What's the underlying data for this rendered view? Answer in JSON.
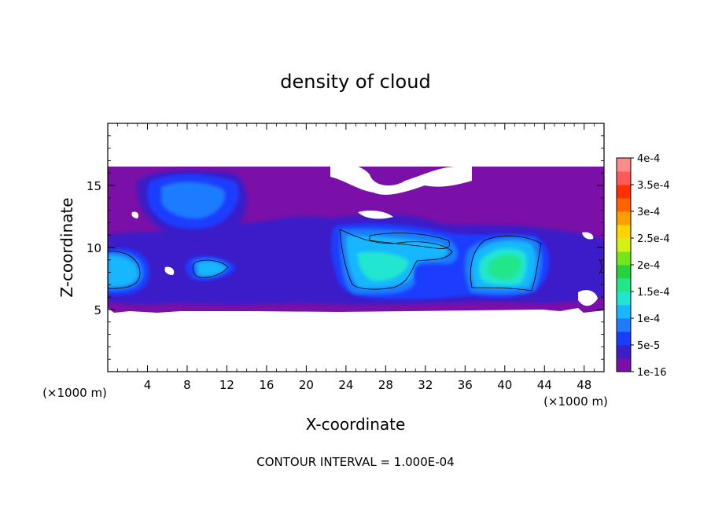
{
  "chart_data": {
    "type": "heatmap",
    "title": "density of cloud",
    "xlabel": "X-coordinate",
    "ylabel": "Z-coordinate",
    "x_unit": "(×1000 m)",
    "y_unit": "(×1000 m)",
    "xlim": [
      0,
      50
    ],
    "ylim": [
      0,
      20
    ],
    "x_ticks": [
      4,
      8,
      12,
      16,
      20,
      24,
      28,
      32,
      36,
      40,
      44,
      48
    ],
    "y_ticks": [
      5,
      10,
      15
    ],
    "footer": "CONTOUR INTERVAL = 1.000E-04",
    "colorbar": {
      "labels": [
        "1e-16",
        "5e-5",
        "1e-4",
        "1.5e-4",
        "2e-4",
        "2.5e-4",
        "3e-4",
        "3.5e-4",
        "4e-4"
      ],
      "colors": [
        "#7a10a8",
        "#3a1ec8",
        "#1a3cff",
        "#1e7bff",
        "#19b7ff",
        "#20e6d0",
        "#22e68a",
        "#28d23c",
        "#74e61e",
        "#d8ef14",
        "#ffd400",
        "#ffa000",
        "#ff6400",
        "#ff3000",
        "#ff5a5a",
        "#ff8a8a"
      ]
    }
  }
}
